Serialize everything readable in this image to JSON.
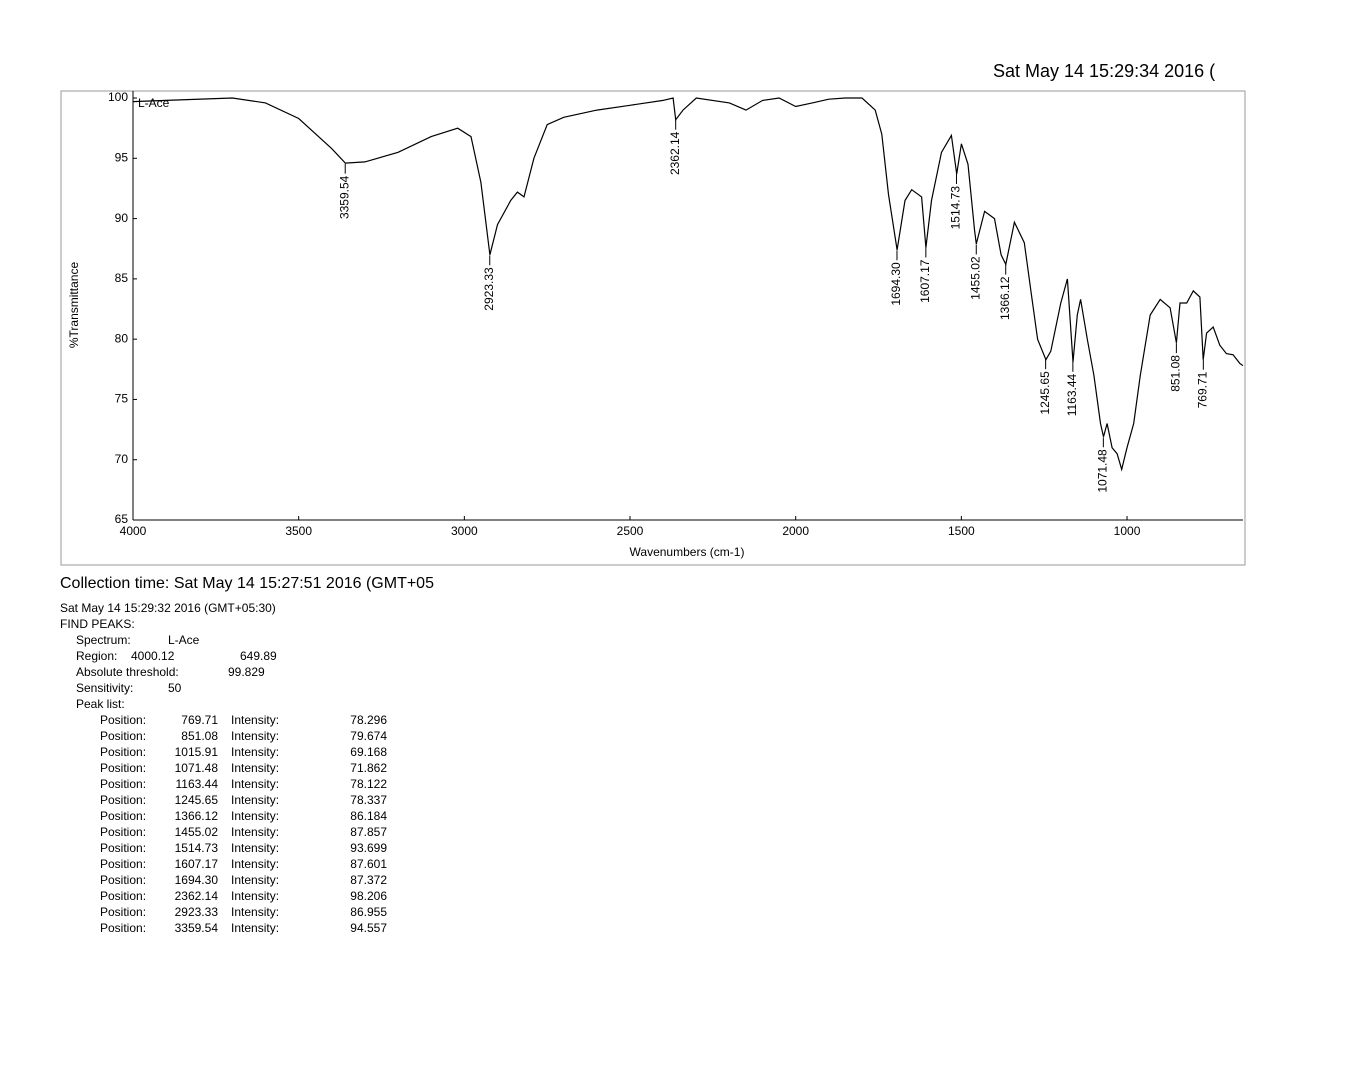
{
  "chart_data": {
    "type": "line",
    "title": "Sat May 14 15:29:34 2016 (",
    "xlabel": "Wavenumbers (cm-1)",
    "ylabel": "%Transmittance",
    "x": [
      4000,
      3900,
      3700,
      3600,
      3500,
      3400,
      3359,
      3300,
      3200,
      3100,
      3020,
      2980,
      2950,
      2923,
      2900,
      2860,
      2840,
      2820,
      2790,
      2750,
      2700,
      2600,
      2500,
      2400,
      2370,
      2362,
      2340,
      2300,
      2200,
      2150,
      2100,
      2050,
      2000,
      1950,
      1900,
      1850,
      1800,
      1760,
      1740,
      1720,
      1694,
      1670,
      1650,
      1620,
      1607,
      1590,
      1560,
      1530,
      1514,
      1500,
      1480,
      1460,
      1455,
      1430,
      1400,
      1380,
      1366,
      1340,
      1310,
      1290,
      1270,
      1245,
      1230,
      1200,
      1180,
      1163,
      1150,
      1140,
      1120,
      1100,
      1080,
      1071,
      1060,
      1045,
      1030,
      1016,
      1000,
      980,
      960,
      930,
      900,
      870,
      851,
      840,
      820,
      800,
      780,
      770,
      760,
      740,
      720,
      700,
      680,
      660,
      650
    ],
    "series": [
      {
        "name": "L-Ace",
        "color": "#000000",
        "values": [
          99.7,
          99.8,
          100,
          99.6,
          98.3,
          95.8,
          94.6,
          94.7,
          95.5,
          96.8,
          97.5,
          96.8,
          93,
          87,
          89.5,
          91.5,
          92.2,
          91.8,
          95,
          97.8,
          98.4,
          99,
          99.4,
          99.8,
          100,
          98.2,
          99,
          100,
          99.6,
          99,
          99.8,
          100,
          99.3,
          99.6,
          99.9,
          100,
          100,
          99,
          97,
          92,
          87.4,
          91.5,
          92.4,
          91.8,
          87.6,
          91.5,
          95.5,
          96.9,
          93.7,
          96.2,
          94.5,
          89,
          87.9,
          90.6,
          90,
          87,
          86.2,
          89.7,
          88,
          84,
          80,
          78.3,
          79,
          83,
          85,
          78.1,
          82,
          83.3,
          80,
          77,
          73,
          71.9,
          73,
          71,
          70.5,
          69.2,
          71,
          73,
          77,
          82,
          83.3,
          82.6,
          79.7,
          83,
          83,
          84,
          83.5,
          78.3,
          80.5,
          81,
          79.5,
          78.8,
          78.7,
          78,
          77.8
        ]
      }
    ],
    "peaks": {
      "x": [
        3359.54,
        2923.33,
        2362.14,
        1694.3,
        1607.17,
        1514.73,
        1455.02,
        1366.12,
        1245.65,
        1163.44,
        1071.48,
        851.08,
        769.71
      ],
      "y": [
        94.557,
        86.955,
        98.206,
        87.372,
        87.601,
        93.699,
        87.857,
        86.184,
        78.337,
        78.122,
        71.862,
        79.674,
        78.296
      ],
      "labels": [
        "3359.54",
        "2923.33",
        "2362.14",
        "1694.30",
        "1607.17",
        "1514.73",
        "1455.02",
        "1366.12",
        "1245.65",
        "1163.44",
        "1071.48",
        "851.08",
        "769.71"
      ]
    },
    "xlim": [
      4000,
      650
    ],
    "xticks": [
      4000,
      3500,
      3000,
      2500,
      2000,
      1500,
      1000
    ],
    "ylim": [
      65,
      100.5
    ],
    "yticks": [
      65,
      70,
      75,
      80,
      85,
      90,
      95,
      100
    ],
    "grid": false
  },
  "report": {
    "collection_time": "Collection time: Sat May 14 15:27:51 2016 (GMT+05",
    "timestamp": "Sat May 14 15:29:32 2016 (GMT+05:30)",
    "command": "FIND PEAKS:",
    "params": [
      [
        "Spectrum:",
        "L-Ace"
      ],
      [
        "Region:",
        "4000.12",
        "649.89"
      ],
      [
        "Absolute threshold:",
        "99.829"
      ],
      [
        "Sensitivity:",
        "50"
      ]
    ],
    "peak_list_label": "Peak list:",
    "peaks": [
      [
        "Position:",
        "769.71",
        "Intensity:",
        "78.296"
      ],
      [
        "Position:",
        "851.08",
        "Intensity:",
        "79.674"
      ],
      [
        "Position:",
        "1015.91",
        "Intensity:",
        "69.168"
      ],
      [
        "Position:",
        "1071.48",
        "Intensity:",
        "71.862"
      ],
      [
        "Position:",
        "1163.44",
        "Intensity:",
        "78.122"
      ],
      [
        "Position:",
        "1245.65",
        "Intensity:",
        "78.337"
      ],
      [
        "Position:",
        "1366.12",
        "Intensity:",
        "86.184"
      ],
      [
        "Position:",
        "1455.02",
        "Intensity:",
        "87.857"
      ],
      [
        "Position:",
        "1514.73",
        "Intensity:",
        "93.699"
      ],
      [
        "Position:",
        "1607.17",
        "Intensity:",
        "87.601"
      ],
      [
        "Position:",
        "1694.30",
        "Intensity:",
        "87.372"
      ],
      [
        "Position:",
        "2362.14",
        "Intensity:",
        "98.206"
      ],
      [
        "Position:",
        "2923.33",
        "Intensity:",
        "86.955"
      ],
      [
        "Position:",
        "3359.54",
        "Intensity:",
        "94.557"
      ]
    ]
  }
}
